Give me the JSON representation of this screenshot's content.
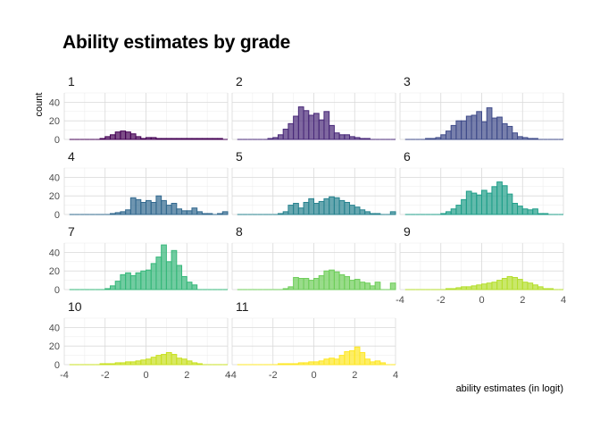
{
  "chart_data": {
    "type": "bar",
    "subtype": "faceted-histogram",
    "title": "Ability estimates by grade",
    "xlabel": "ability estimates (in logit)",
    "ylabel": "count",
    "xlim": [
      -4,
      4
    ],
    "ylim": [
      0,
      50
    ],
    "x_ticks": [
      -4,
      -2,
      0,
      2,
      4
    ],
    "y_ticks": [
      0,
      20,
      40
    ],
    "grid": true,
    "bin_width": 0.25,
    "bin_start": -3.625,
    "panels": [
      {
        "label": "1",
        "fill": "#440154",
        "values": [
          0,
          0,
          0,
          0,
          0,
          0,
          1,
          3,
          5,
          8,
          9,
          8,
          6,
          3,
          1,
          2,
          2,
          1,
          1,
          1,
          1,
          1,
          1,
          1,
          1,
          1,
          1,
          1,
          1,
          1,
          0
        ]
      },
      {
        "label": "2",
        "fill": "#482878",
        "values": [
          0,
          0,
          0,
          0,
          0,
          0,
          1,
          2,
          5,
          11,
          17,
          25,
          35,
          31,
          26,
          28,
          21,
          30,
          15,
          7,
          5,
          5,
          3,
          2,
          1,
          1,
          0,
          0,
          0,
          0,
          0
        ]
      },
      {
        "label": "3",
        "fill": "#3E4A89",
        "values": [
          0,
          0,
          0,
          0,
          1,
          1,
          2,
          5,
          9,
          15,
          20,
          20,
          25,
          26,
          30,
          19,
          34,
          23,
          24,
          17,
          14,
          7,
          3,
          2,
          1,
          1,
          0,
          0,
          0,
          0,
          0
        ]
      },
      {
        "label": "4",
        "fill": "#31688E",
        "values": [
          0,
          0,
          0,
          0,
          0,
          0,
          0,
          0,
          1,
          2,
          3,
          5,
          18,
          16,
          13,
          15,
          13,
          20,
          15,
          10,
          12,
          6,
          4,
          4,
          7,
          3,
          1,
          1,
          0,
          1,
          3
        ]
      },
      {
        "label": "5",
        "fill": "#26828E",
        "values": [
          0,
          0,
          0,
          0,
          0,
          0,
          0,
          0,
          1,
          3,
          10,
          12,
          7,
          13,
          17,
          12,
          14,
          17,
          19,
          18,
          15,
          13,
          10,
          8,
          5,
          3,
          1,
          1,
          0,
          0,
          3
        ]
      },
      {
        "label": "6",
        "fill": "#1F9E89",
        "values": [
          0,
          0,
          0,
          0,
          0,
          0,
          0,
          1,
          3,
          6,
          10,
          16,
          25,
          23,
          21,
          26,
          23,
          30,
          35,
          31,
          22,
          12,
          9,
          6,
          5,
          6,
          1,
          1,
          0,
          0,
          0
        ]
      },
      {
        "label": "7",
        "fill": "#35B779",
        "values": [
          0,
          0,
          0,
          0,
          0,
          0,
          0,
          1,
          4,
          9,
          16,
          18,
          15,
          18,
          20,
          21,
          28,
          35,
          48,
          30,
          42,
          26,
          14,
          8,
          5,
          0,
          0,
          0,
          0,
          0,
          0
        ]
      },
      {
        "label": "8",
        "fill": "#6DCD59",
        "values": [
          0,
          0,
          0,
          0,
          0,
          0,
          0,
          0,
          0,
          1,
          3,
          13,
          12,
          12,
          10,
          12,
          15,
          20,
          21,
          19,
          16,
          14,
          10,
          11,
          8,
          7,
          4,
          8,
          0,
          0,
          7
        ]
      },
      {
        "label": "9",
        "fill": "#B4DE2C",
        "values": [
          0,
          0,
          0,
          0,
          0,
          0,
          0,
          0,
          1,
          1,
          2,
          3,
          3,
          4,
          5,
          6,
          7,
          8,
          10,
          12,
          14,
          13,
          11,
          8,
          7,
          5,
          3,
          1,
          1,
          0,
          0
        ]
      },
      {
        "label": "10",
        "fill": "#C8E020",
        "values": [
          0,
          0,
          0,
          0,
          0,
          0,
          1,
          1,
          1,
          2,
          2,
          3,
          3,
          4,
          5,
          6,
          8,
          10,
          11,
          13,
          11,
          7,
          6,
          4,
          2,
          1,
          0,
          0,
          0,
          0,
          0
        ]
      },
      {
        "label": "11",
        "fill": "#FDE725",
        "values": [
          0,
          0,
          0,
          0,
          0,
          0,
          0,
          0,
          1,
          1,
          1,
          1,
          2,
          2,
          3,
          3,
          4,
          6,
          7,
          6,
          10,
          14,
          15,
          19,
          13,
          6,
          3,
          4,
          2,
          0,
          0
        ]
      }
    ]
  }
}
